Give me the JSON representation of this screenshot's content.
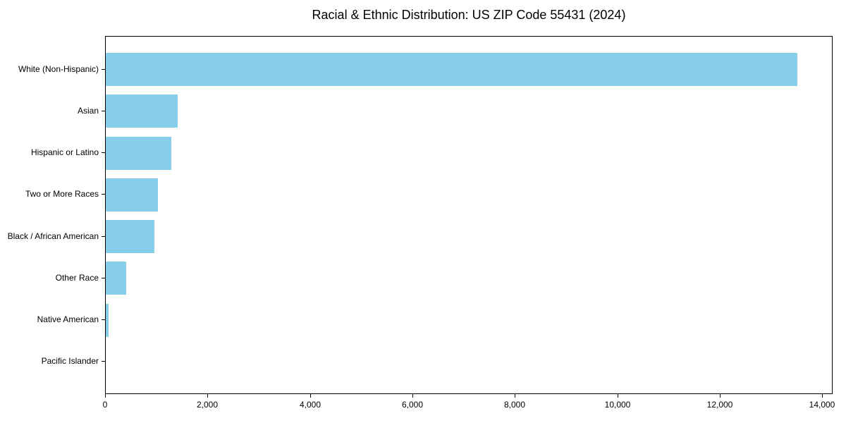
{
  "title": "Racial & Ethnic Distribution: US ZIP Code 55431 (2024)",
  "colors": {
    "bar": "#87CEEB",
    "axis": "#000000",
    "text": "#000000",
    "background": "#FFFFFF"
  },
  "chart_data": {
    "type": "bar",
    "orientation": "horizontal",
    "title": "Racial & Ethnic Distribution: US ZIP Code 55431 (2024)",
    "categories": [
      "White (Non-Hispanic)",
      "Asian",
      "Hispanic or Latino",
      "Two or More Races",
      "Black / African American",
      "Other Race",
      "Native American",
      "Pacific Islander"
    ],
    "values": [
      13500,
      1400,
      1280,
      1020,
      950,
      400,
      55,
      0
    ],
    "xlabel": "",
    "ylabel": "",
    "xlim": [
      0,
      14200
    ],
    "xticks": [
      0,
      2000,
      4000,
      6000,
      8000,
      10000,
      12000,
      14000
    ],
    "xtick_labels": [
      "0",
      "2,000",
      "4,000",
      "6,000",
      "8,000",
      "10,000",
      "12,000",
      "14,000"
    ],
    "grid": false,
    "legend": "none",
    "bar_color": "#87CEEB"
  }
}
